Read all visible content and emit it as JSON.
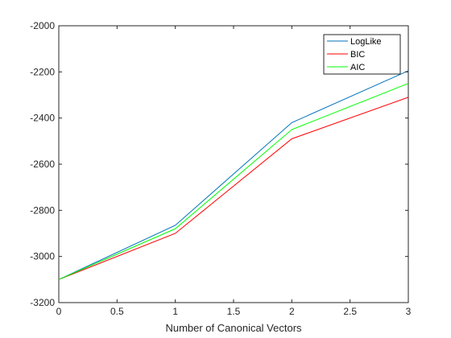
{
  "chart_data": {
    "type": "line",
    "title": "",
    "xlabel": "Number of Canonical Vectors",
    "ylabel": "",
    "x": [
      0,
      1,
      2,
      3
    ],
    "xlim": [
      0,
      3
    ],
    "ylim": [
      -3200,
      -2000
    ],
    "xticks": [
      "0",
      "0.5",
      "1",
      "1.5",
      "2",
      "2.5",
      "3"
    ],
    "yticks": [
      "-2000",
      "-2200",
      "-2400",
      "-2600",
      "-2800",
      "-3000",
      "-3200"
    ],
    "grid": false,
    "legend_position": "top-right",
    "series": [
      {
        "name": "LogLike",
        "color": "#0072BD",
        "values": [
          -3100,
          -2865,
          -2420,
          -2195
        ]
      },
      {
        "name": "BIC",
        "color": "#FF0000",
        "values": [
          -3100,
          -2900,
          -2490,
          -2310
        ]
      },
      {
        "name": "AIC",
        "color": "#00FF00",
        "values": [
          -3100,
          -2880,
          -2450,
          -2250
        ]
      }
    ]
  }
}
